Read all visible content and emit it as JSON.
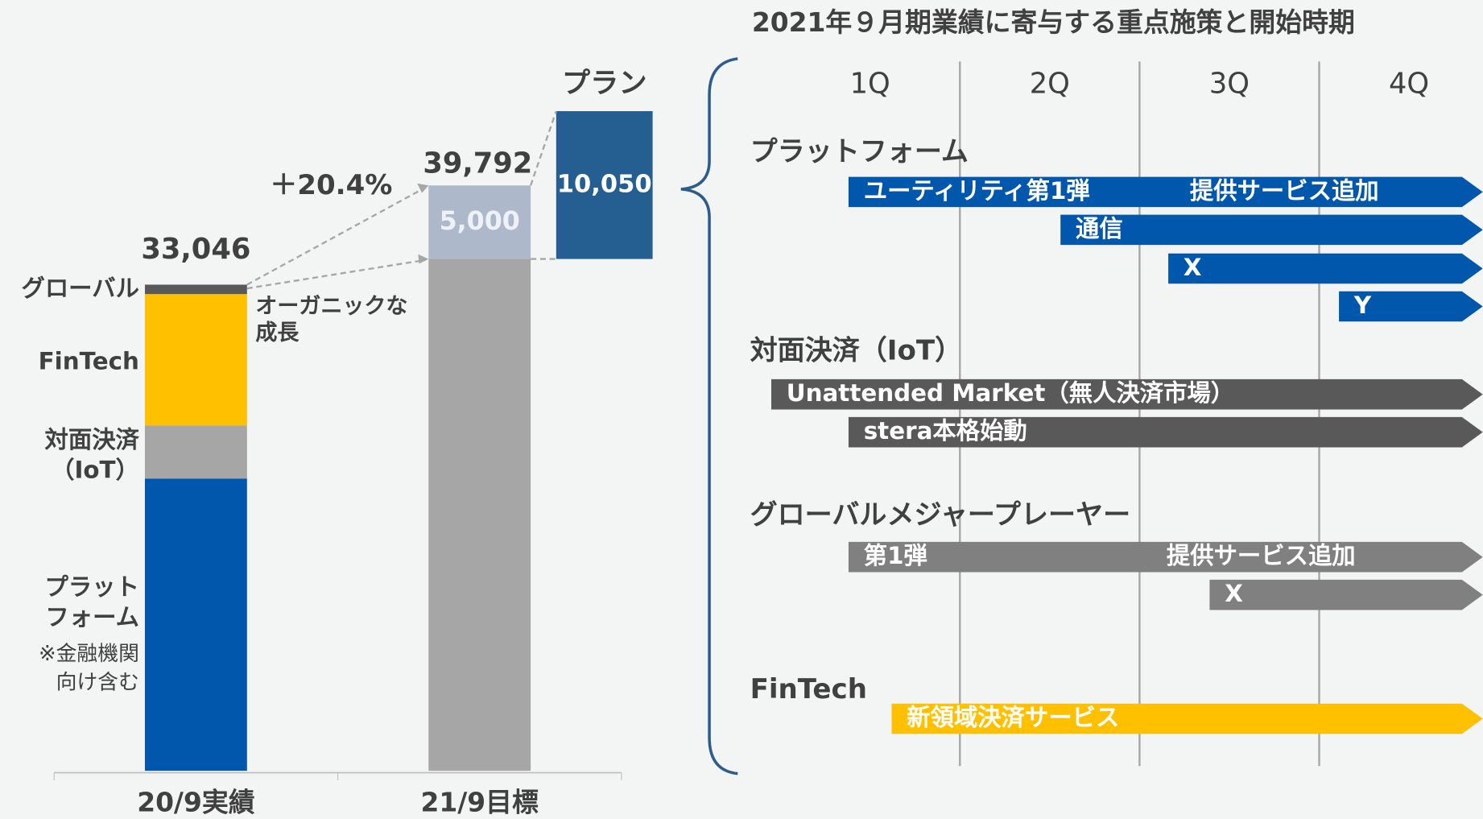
{
  "chart_data": {
    "type": "bar",
    "categories": [
      "20/9実績",
      "21/9目標"
    ],
    "series": [
      {
        "name": [
          "プラット",
          "フォーム"
        ],
        "note": [
          "※金融機関",
          "向け含む"
        ],
        "color": "#0057ab",
        "values": [
          19866,
          null
        ]
      },
      {
        "name": [
          "対面決済",
          "（IoT）"
        ],
        "color": "#a6a6a6",
        "values": [
          3600,
          null
        ]
      },
      {
        "name": [
          "FinTech"
        ],
        "color": "#ffc000",
        "values": [
          8940,
          null
        ]
      },
      {
        "name": [
          "グローバル"
        ],
        "color": "#595959",
        "values": [
          640,
          null
        ]
      },
      {
        "name": [
          "オーガニックな",
          "成長"
        ],
        "color": "#a6a6a6",
        "values": [
          null,
          34792
        ]
      },
      {
        "color": "#adb9ca",
        "values": [
          null,
          5000
        ],
        "value_labels": [
          null,
          "5,000"
        ]
      }
    ],
    "totals": [
      33046,
      39792
    ],
    "total_labels": [
      "33,046",
      "39,792"
    ],
    "growth_label": "＋20.4%",
    "plan": {
      "name": "プラン",
      "value": 10050,
      "value_label": "10,050",
      "color": "#255e91"
    }
  },
  "timeline": {
    "title": "2021年９月期業績に寄与する重点施策と開始時期",
    "quarters": [
      "1Q",
      "2Q",
      "3Q",
      "4Q"
    ],
    "groups": [
      {
        "name": "プラットフォーム",
        "color": "#0057ab",
        "items": [
          {
            "label": "ユーティリティ第1弾",
            "start": 0.38,
            "milestones": [
              {
                "label": "提供サービス追加",
                "at": 2.28
              }
            ]
          },
          {
            "label": "通信",
            "start": 1.56
          },
          {
            "label": "X",
            "start": 2.16
          },
          {
            "label": "Y",
            "start": 3.11
          }
        ]
      },
      {
        "name": "対面決済（IoT）",
        "color": "#595959",
        "items": [
          {
            "label": "Unattended Market（無人決済市場）",
            "start": -0.05
          },
          {
            "label": "stera本格始動",
            "start": 0.38
          }
        ]
      },
      {
        "name": "グローバルメジャープレーヤー",
        "color": "#808080",
        "items": [
          {
            "label": "第1弾",
            "start": 0.38,
            "milestones": [
              {
                "label": "提供サービス追加",
                "at": 2.15
              }
            ]
          },
          {
            "label": "X",
            "start": 2.39
          }
        ]
      },
      {
        "name": "FinTech",
        "color": "#ffc000",
        "items": [
          {
            "label": "新領域決済サービス",
            "start": 0.62
          }
        ]
      }
    ]
  }
}
